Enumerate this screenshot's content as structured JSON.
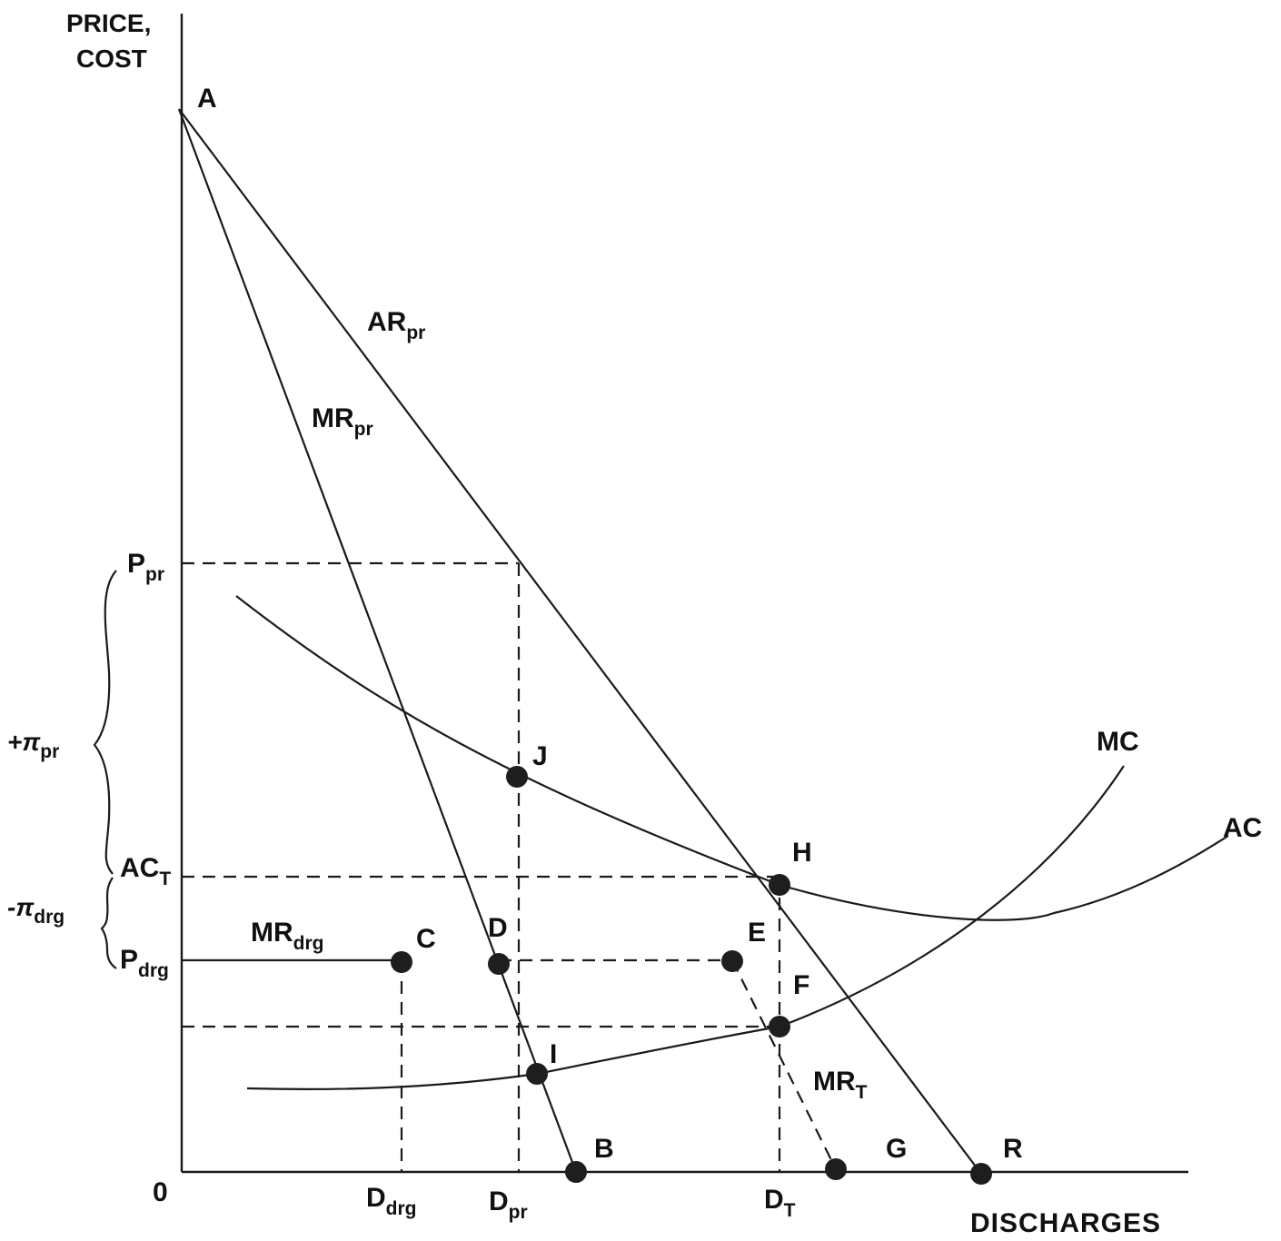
{
  "axes": {
    "y_label_line1": "PRICE,",
    "y_label_line2": "COST",
    "x_label": "DISCHARGES",
    "origin": "0"
  },
  "curves": {
    "ar_pr": {
      "main": "AR",
      "sub": "pr"
    },
    "mr_pr": {
      "main": "MR",
      "sub": "pr"
    },
    "mr_drg": {
      "main": "MR",
      "sub": "drg"
    },
    "mr_t": {
      "main": "MR",
      "sub": "T"
    },
    "mc": "MC",
    "ac": "AC"
  },
  "points": {
    "a": "A",
    "b": "B",
    "c": "C",
    "d": "D",
    "e": "E",
    "f": "F",
    "g": "G",
    "h": "H",
    "i": "I",
    "j": "J",
    "r": "R"
  },
  "y_ticks": {
    "p_pr": {
      "main": "P",
      "sub": "pr"
    },
    "ac_t": {
      "main": "AC",
      "sub": "T"
    },
    "p_drg": {
      "main": "P",
      "sub": "drg"
    }
  },
  "x_ticks": {
    "d_drg": {
      "main": "D",
      "sub": "drg"
    },
    "d_pr": {
      "main": "D",
      "sub": "pr"
    },
    "d_t": {
      "main": "D",
      "sub": "T"
    }
  },
  "brackets": {
    "plus_pi": {
      "main": "+π",
      "sub": "pr"
    },
    "minus_pi": {
      "main": "-π",
      "sub": "drg"
    }
  }
}
